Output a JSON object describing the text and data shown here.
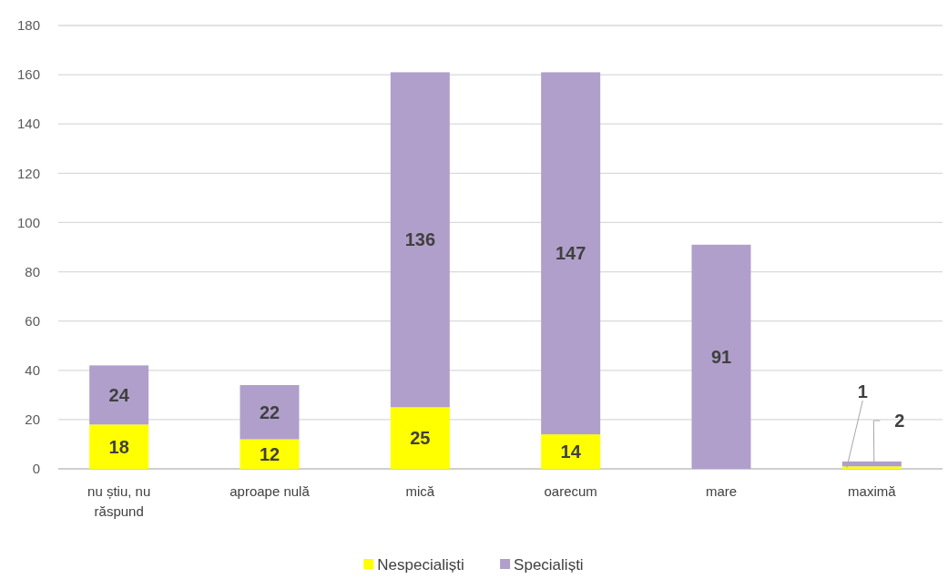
{
  "chart_data": {
    "type": "bar",
    "stacked": true,
    "categories": [
      "nu știu, nu răspund",
      "aproape nulă",
      "mică",
      "oarecum",
      "mare",
      "maximă"
    ],
    "series": [
      {
        "name": "Nespecialiști",
        "color": "#ffff00",
        "values": [
          18,
          12,
          25,
          14,
          null,
          1
        ],
        "value_labels": [
          "18",
          "12",
          "25",
          "14",
          null,
          "1"
        ]
      },
      {
        "name": "Specialiști",
        "color": "#b09fca",
        "values": [
          24,
          22,
          136,
          147,
          91,
          2
        ],
        "value_labels": [
          "24",
          "22",
          "136",
          "147",
          "91",
          "2"
        ]
      }
    ],
    "ylim": [
      0,
      180
    ],
    "yticks": [
      0,
      20,
      40,
      60,
      80,
      100,
      120,
      140,
      160,
      180
    ],
    "grid": "y",
    "legend": "bottom"
  }
}
